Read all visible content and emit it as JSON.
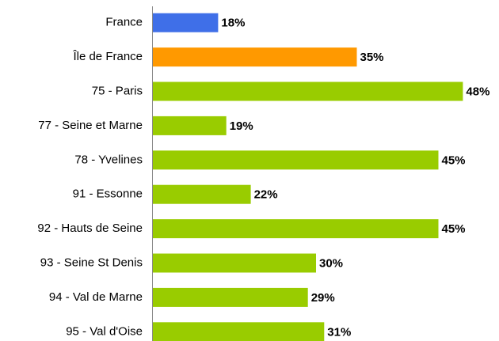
{
  "chart_data": {
    "type": "barh",
    "categories": [
      "France",
      "Île de France",
      "75 - Paris",
      "77 - Seine et Marne",
      "78 - Yvelines",
      "91 - Essonne",
      "92 - Hauts de Seine",
      "93 - Seine St Denis",
      "94 - Val de Marne",
      "95 - Val d'Oise"
    ],
    "values": [
      18,
      35,
      48,
      19,
      45,
      22,
      45,
      30,
      29,
      31
    ],
    "value_labels": [
      "18%",
      "35%",
      "48%",
      "19%",
      "45%",
      "22%",
      "45%",
      "30%",
      "29%",
      "31%"
    ],
    "colors": [
      "#3f6fe8",
      "#ff9900",
      "#99cc00",
      "#99cc00",
      "#99cc00",
      "#99cc00",
      "#99cc00",
      "#99cc00",
      "#99cc00",
      "#99cc00"
    ],
    "xlim": [
      10,
      50
    ]
  }
}
